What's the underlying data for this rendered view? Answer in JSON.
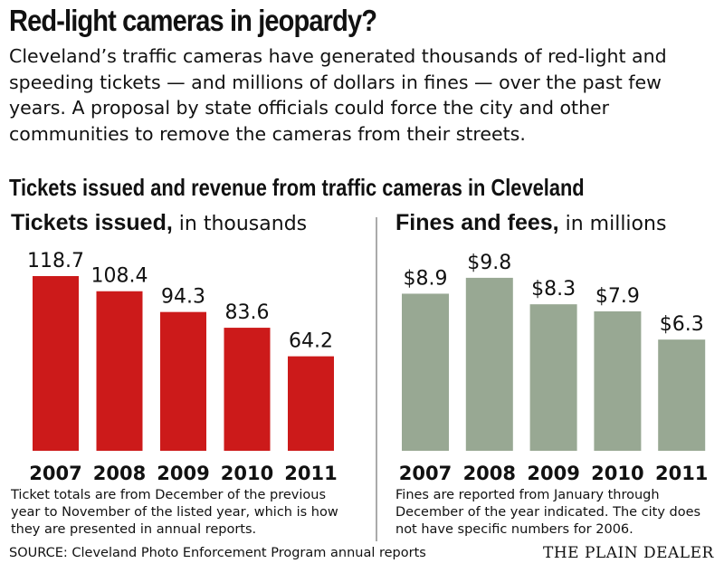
{
  "title": "Red-light cameras in jeopardy?",
  "intro": "Cleveland’s traffic cameras have generated thousands of red-light and speeding tickets — and millions of dollars in fines — over the past few years. A proposal by state officials could force the city and other communities to remove the cameras from their streets.",
  "subtitle": "Tickets issued and revenue from traffic cameras in Cleveland",
  "chart_data": [
    {
      "type": "bar",
      "title": "Tickets issued,",
      "title_suffix": " in thousands",
      "categories": [
        "2007",
        "2008",
        "2009",
        "2010",
        "2011"
      ],
      "values": [
        118.7,
        108.4,
        94.3,
        83.6,
        64.2
      ],
      "labels": [
        "118.7",
        "108.4",
        "94.3",
        "83.6",
        "64.2"
      ],
      "color": "#cc1a1a",
      "grid": false,
      "note": "Ticket totals are from December of the previous year to November of the listed year, which is how they are presented in annual reports."
    },
    {
      "type": "bar",
      "title": "Fines and fees,",
      "title_suffix": " in millions",
      "categories": [
        "2007",
        "2008",
        "2009",
        "2010",
        "2011"
      ],
      "values": [
        8.9,
        9.8,
        8.3,
        7.9,
        6.3
      ],
      "labels": [
        "$8.9",
        "$9.8",
        "$8.3",
        "$7.9",
        "$6.3"
      ],
      "color": "#98a893",
      "grid": false,
      "note": "Fines are reported from January through December of the year indicated. The city does not have specific numbers for 2006."
    }
  ],
  "source": "SOURCE: Cleveland Photo Enforcement Program annual reports",
  "logo": "THE PLAIN DEALER"
}
